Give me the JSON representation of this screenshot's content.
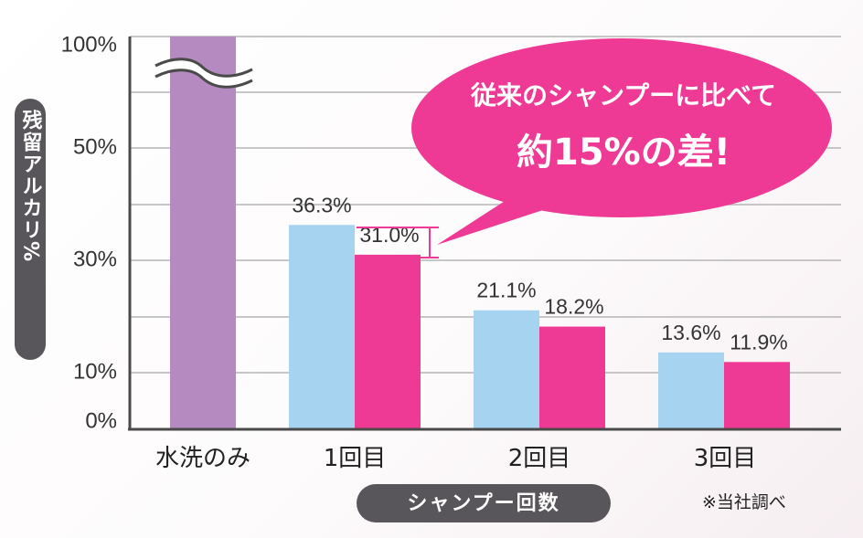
{
  "chart_data": {
    "type": "bar",
    "ylabel": "残留アルカリ%",
    "xlabel": "シャンプー回数",
    "y_ticks": [
      "100%",
      "50%",
      "30%",
      "10%",
      "0%"
    ],
    "y_scale": "broken",
    "grid": true,
    "categories": [
      "水洗のみ",
      "1回目",
      "2回目",
      "3回目"
    ],
    "series": [
      {
        "color": "#a6d3ef",
        "values": [
          null,
          36.3,
          21.1,
          13.6
        ],
        "labels": [
          "",
          "36.3%",
          "21.1%",
          "13.6%"
        ]
      },
      {
        "color": "#ee3a94",
        "values": [
          null,
          31.0,
          18.2,
          11.9
        ],
        "labels": [
          "",
          "31.0%",
          "18.2%",
          "11.9%"
        ]
      }
    ],
    "water_only": {
      "value": 100,
      "color": "#b48ac0"
    },
    "callout": {
      "line1": "従来のシャンプーに比べて",
      "line2": "約15%の差!",
      "color": "#ee3a94"
    },
    "note": "※当社調べ"
  }
}
